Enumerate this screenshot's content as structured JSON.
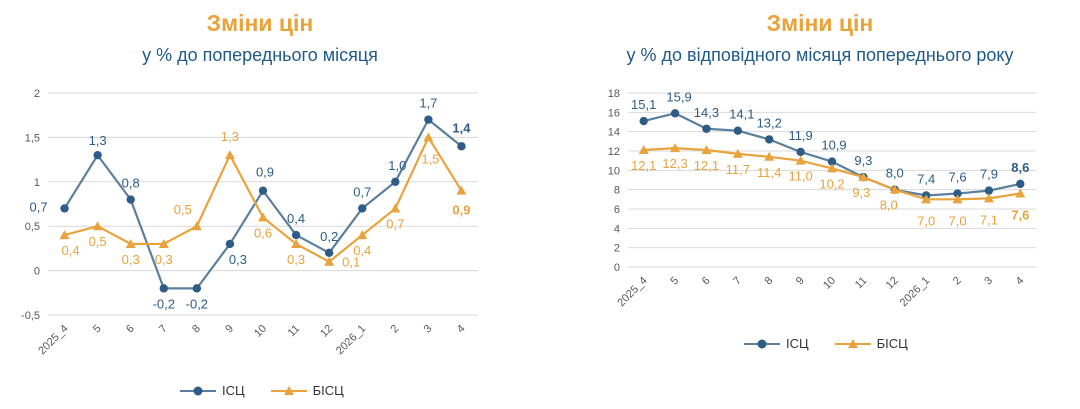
{
  "colors": {
    "title": "#E8A33C",
    "subtitle": "#1F5A8A",
    "icsc": "#5B7F9E",
    "icsc_marker": "#2E5C86",
    "bicsc": "#E8A33C",
    "grid": "#D9D9D9",
    "axis_text": "#595959"
  },
  "chart_data": [
    {
      "type": "line",
      "title": "Зміни цін",
      "subtitle": "у % до попереднього місяця",
      "categories": [
        "2025_4",
        "5",
        "6",
        "7",
        "8",
        "9",
        "10",
        "11",
        "12",
        "2026_1",
        "2",
        "3",
        "4"
      ],
      "series": [
        {
          "name": "ІСЦ",
          "values": [
            0.7,
            1.3,
            0.8,
            -0.2,
            -0.2,
            0.3,
            0.9,
            0.4,
            0.2,
            0.7,
            1.0,
            1.7,
            1.4
          ]
        },
        {
          "name": "БІСЦ",
          "values": [
            0.4,
            0.5,
            0.3,
            0.3,
            0.5,
            1.3,
            0.6,
            0.3,
            0.1,
            0.4,
            0.7,
            1.5,
            0.9
          ]
        }
      ],
      "series_labels": [
        [
          "0,7",
          "1,3",
          "0,8",
          "-0,2",
          "-0,2",
          "0,3",
          "0,9",
          "0,4",
          "0,2",
          "0,7",
          "1,0",
          "1,7",
          "1,4"
        ],
        [
          "0,4",
          "0,5",
          "0,3",
          "0,3",
          "0,5",
          "1,3",
          "0,6",
          "0,3",
          "0,1",
          "0,4",
          "0,7",
          "1,5",
          "0,9"
        ]
      ],
      "yticks": [
        "-0,5",
        "0",
        "0,5",
        "1",
        "1,5",
        "2"
      ],
      "ylim": [
        -0.5,
        2
      ],
      "grid": true,
      "legend": "bottom"
    },
    {
      "type": "line",
      "title": "Зміни цін",
      "subtitle": "у % до відповідного місяця попереднього року",
      "categories": [
        "2025_4",
        "5",
        "6",
        "7",
        "8",
        "9",
        "10",
        "11",
        "12",
        "2026_1",
        "2",
        "3",
        "4"
      ],
      "series": [
        {
          "name": "ІСЦ",
          "values": [
            15.1,
            15.9,
            14.3,
            14.1,
            13.2,
            11.9,
            10.9,
            9.3,
            8.0,
            7.4,
            7.6,
            7.9,
            8.6
          ]
        },
        {
          "name": "БІСЦ",
          "values": [
            12.1,
            12.3,
            12.1,
            11.7,
            11.4,
            11.0,
            10.2,
            9.3,
            8.0,
            7.0,
            7.0,
            7.1,
            7.6
          ]
        }
      ],
      "series_labels": [
        [
          "15,1",
          "15,9",
          "14,3",
          "14,1",
          "13,2",
          "11,9",
          "10,9",
          "9,3",
          "8,0",
          "7,4",
          "7,6",
          "7,9",
          "8,6"
        ],
        [
          "12,1",
          "12,3",
          "12,1",
          "11,7",
          "11,4",
          "11,0",
          "10,2",
          "9,3",
          "8,0",
          "7,0",
          "7,0",
          "7,1",
          "7,6"
        ]
      ],
      "yticks": [
        "0",
        "2",
        "4",
        "6",
        "8",
        "10",
        "12",
        "14",
        "16",
        "18"
      ],
      "ylim": [
        0,
        18
      ],
      "grid": true,
      "legend": "bottom"
    }
  ]
}
